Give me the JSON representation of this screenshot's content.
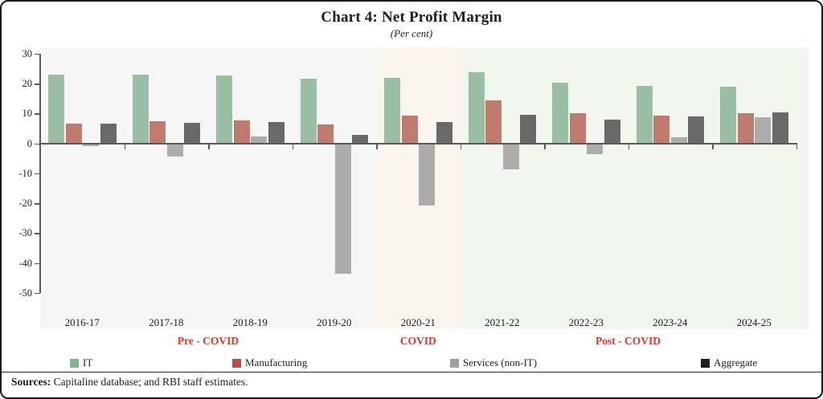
{
  "figure": {
    "title": "Chart 4: Net Profit Margin",
    "subtitle": "(Per cent)",
    "sources_label": "Sources:",
    "sources_text": " Capitaline database; and RBI staff estimates."
  },
  "chart_data": {
    "type": "bar",
    "title": "Chart 4: Net Profit Margin",
    "unit_label": "(Per cent)",
    "categories": [
      "2016-17",
      "2017-18",
      "2018-19",
      "2019-20",
      "2020-21",
      "2021-22",
      "2022-23",
      "2023-24",
      "2024-25"
    ],
    "series": [
      {
        "name": "IT",
        "color": "#99BEA3",
        "legend_color": "#7FB78A",
        "values": [
          22.9,
          23.1,
          22.8,
          21.7,
          21.9,
          23.8,
          20.2,
          19.3,
          19.0
        ]
      },
      {
        "name": "Manufacturing",
        "color": "#C17B6E",
        "legend_color": "#C14A3C",
        "values": [
          6.7,
          7.5,
          7.8,
          6.4,
          9.2,
          14.5,
          10.2,
          9.3,
          10.2
        ]
      },
      {
        "name": "Services (non-IT)",
        "color": "#ACACAC",
        "legend_color": "#9FA0A3",
        "values": [
          -0.9,
          -4.5,
          2.3,
          -43.6,
          -20.9,
          -8.6,
          -3.6,
          2.1,
          8.7
        ]
      },
      {
        "name": "Aggregate",
        "color": "#696969",
        "legend_color": "#1E1E1E",
        "values": [
          6.5,
          6.8,
          7.2,
          2.9,
          7.2,
          9.6,
          8.0,
          9.0,
          10.3
        ]
      }
    ],
    "ylim": [
      -50,
      30
    ],
    "yticks": [
      30,
      20,
      10,
      0,
      -10,
      -20,
      -30,
      -40,
      -50
    ],
    "grid": false,
    "legend_position": "bottom",
    "phases": [
      {
        "label": "Pre - COVID",
        "start": 0,
        "end": 3,
        "bg": "#F6F6F6",
        "label_color": "#E2362B"
      },
      {
        "label": "COVID",
        "start": 4,
        "end": 4,
        "bg": "#FBF5EF",
        "label_color": "#E2362B"
      },
      {
        "label": "Post - COVID",
        "start": 5,
        "end": 8,
        "bg": "#F1F6EE",
        "label_color": "#E2362B"
      }
    ]
  }
}
